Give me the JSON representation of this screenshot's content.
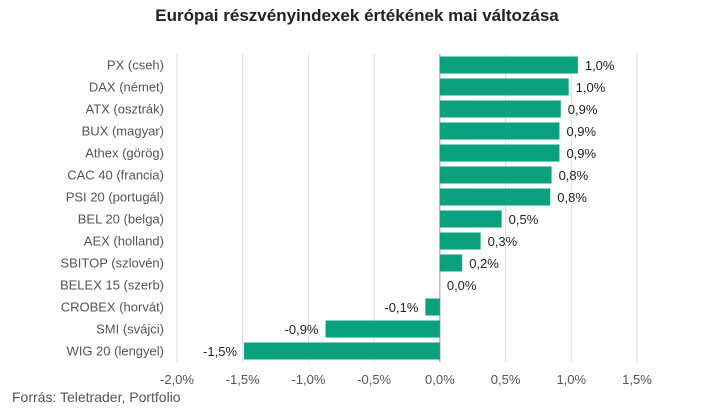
{
  "chart_data": {
    "type": "bar",
    "orientation": "horizontal",
    "title": "Európai részvényindexek értékének mai változása",
    "source": "Forrás: Teletrader, Portfolio",
    "color": "#0aa17e",
    "categories": [
      "PX (cseh)",
      "DAX (német)",
      "ATX (osztrák)",
      "BUX (magyar)",
      "Athex (görög)",
      "CAC 40 (francia)",
      "PSI 20 (portugál)",
      "BEL 20 (belga)",
      "AEX (holland)",
      "SBITOP (szlovén)",
      "BELEX 15 (szerb)",
      "CROBEX (horvát)",
      "SMI (svájci)",
      "WIG 20 (lengyel)"
    ],
    "values": [
      1.05,
      0.98,
      0.92,
      0.91,
      0.91,
      0.85,
      0.84,
      0.47,
      0.31,
      0.17,
      0.0,
      -0.11,
      -0.87,
      -1.49
    ],
    "value_labels": [
      "1,0%",
      "1,0%",
      "0,9%",
      "0,9%",
      "0,9%",
      "0,8%",
      "0,8%",
      "0,5%",
      "0,3%",
      "0,2%",
      "0,0%",
      "-0,1%",
      "-0,9%",
      "-1,5%"
    ],
    "xlim": [
      -2.0,
      1.5
    ],
    "xticks": [
      -2.0,
      -1.5,
      -1.0,
      -0.5,
      0.0,
      0.5,
      1.0,
      1.5
    ],
    "xtick_labels": [
      "-2,0%",
      "-1,5%",
      "-1,0%",
      "-0,5%",
      "0,0%",
      "0,5%",
      "1,0%",
      "1,5%"
    ],
    "grid": true,
    "legend": "none"
  }
}
